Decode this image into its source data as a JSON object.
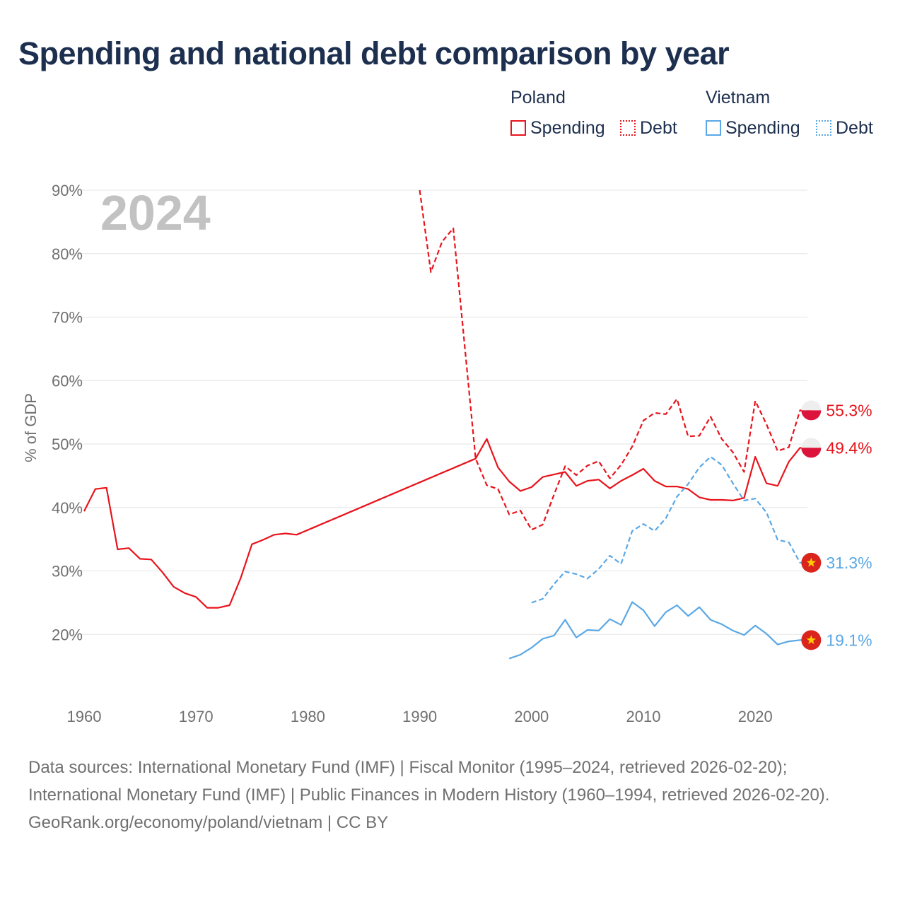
{
  "title": "Spending and national debt comparison by year",
  "legend": {
    "groups": [
      {
        "country": "Poland",
        "color": "#e8141c",
        "items": [
          {
            "label": "Spending",
            "style": "solid"
          },
          {
            "label": "Debt",
            "style": "dotted"
          }
        ]
      },
      {
        "country": "Vietnam",
        "color": "#5aa8e6",
        "items": [
          {
            "label": "Spending",
            "style": "solid"
          },
          {
            "label": "Debt",
            "style": "dotted"
          }
        ]
      }
    ]
  },
  "year_label": "2024",
  "chart_data": {
    "type": "line",
    "title": "Spending and national debt comparison by year",
    "xlabel": "",
    "ylabel": "% of GDP",
    "xlim": [
      1958.8,
      2025.8
    ],
    "ylim": [
      10,
      90
    ],
    "x_ticks": [
      1960,
      1970,
      1980,
      1990,
      2000,
      2010,
      2020
    ],
    "y_ticks": [
      20,
      30,
      40,
      50,
      60,
      70,
      80,
      90
    ],
    "y_tick_labels": [
      "20%",
      "30%",
      "40%",
      "50%",
      "60%",
      "70%",
      "80%",
      "90%"
    ],
    "series": [
      {
        "name": "Poland Spending",
        "country": "Poland",
        "measure": "Spending",
        "color": "#e8141c",
        "dash": "solid",
        "points": [
          [
            1960,
            39.4
          ],
          [
            1961,
            42.9
          ],
          [
            1962,
            43.1
          ],
          [
            1963,
            33.4
          ],
          [
            1964,
            33.6
          ],
          [
            1965,
            31.9
          ],
          [
            1966,
            31.8
          ],
          [
            1967,
            29.8
          ],
          [
            1968,
            27.5
          ],
          [
            1969,
            26.5
          ],
          [
            1970,
            25.9
          ],
          [
            1971,
            24.2
          ],
          [
            1972,
            24.2
          ],
          [
            1973,
            24.6
          ],
          [
            1974,
            28.9
          ],
          [
            1975,
            34.2
          ],
          [
            1976,
            34.9
          ],
          [
            1977,
            35.7
          ],
          [
            1978,
            35.9
          ],
          [
            1979,
            35.7
          ],
          [
            1995,
            47.7
          ],
          [
            1996,
            50.8
          ],
          [
            1997,
            46.3
          ],
          [
            1998,
            44.1
          ],
          [
            1999,
            42.6
          ],
          [
            2000,
            43.2
          ],
          [
            2001,
            44.8
          ],
          [
            2002,
            45.2
          ],
          [
            2003,
            45.6
          ],
          [
            2004,
            43.4
          ],
          [
            2005,
            44.2
          ],
          [
            2006,
            44.4
          ],
          [
            2007,
            43.0
          ],
          [
            2008,
            44.2
          ],
          [
            2009,
            45.1
          ],
          [
            2010,
            46.1
          ],
          [
            2011,
            44.2
          ],
          [
            2012,
            43.3
          ],
          [
            2013,
            43.3
          ],
          [
            2014,
            42.9
          ],
          [
            2015,
            41.6
          ],
          [
            2016,
            41.2
          ],
          [
            2017,
            41.2
          ],
          [
            2018,
            41.1
          ],
          [
            2019,
            41.5
          ],
          [
            2020,
            48.0
          ],
          [
            2021,
            43.8
          ],
          [
            2022,
            43.4
          ],
          [
            2023,
            47.2
          ],
          [
            2024,
            49.4
          ],
          [
            2025,
            49.4
          ]
        ],
        "end_label": "49.4%"
      },
      {
        "name": "Poland Debt",
        "country": "Poland",
        "measure": "Debt",
        "color": "#e8141c",
        "dash": "dashed",
        "points": [
          [
            1979,
            35.7
          ],
          [
            1995,
            47.7
          ]
        ],
        "note": "connector between spending history and debt series"
      },
      {
        "name": "Poland Debt",
        "country": "Poland",
        "measure": "Debt",
        "color": "#e8141c",
        "dash": "dashed",
        "points": [
          [
            1990,
            90.0
          ],
          [
            1991,
            77.1
          ],
          [
            1992,
            81.9
          ],
          [
            1993,
            84.0
          ],
          [
            1995,
            47.7
          ],
          [
            1996,
            43.5
          ],
          [
            1997,
            42.9
          ],
          [
            1998,
            38.9
          ],
          [
            1999,
            39.5
          ],
          [
            2000,
            36.5
          ],
          [
            2001,
            37.3
          ],
          [
            2002,
            42.0
          ],
          [
            2003,
            46.5
          ],
          [
            2004,
            45.1
          ],
          [
            2005,
            46.6
          ],
          [
            2006,
            47.3
          ],
          [
            2007,
            44.6
          ],
          [
            2008,
            46.7
          ],
          [
            2009,
            49.6
          ],
          [
            2010,
            53.7
          ],
          [
            2011,
            54.9
          ],
          [
            2012,
            54.7
          ],
          [
            2013,
            57.1
          ],
          [
            2014,
            51.2
          ],
          [
            2015,
            51.3
          ],
          [
            2016,
            54.3
          ],
          [
            2017,
            50.8
          ],
          [
            2018,
            48.7
          ],
          [
            2019,
            45.6
          ],
          [
            2020,
            56.8
          ],
          [
            2021,
            53.1
          ],
          [
            2022,
            48.9
          ],
          [
            2023,
            49.5
          ],
          [
            2024,
            55.3
          ],
          [
            2025,
            55.3
          ]
        ],
        "end_label": "55.3%"
      },
      {
        "name": "Vietnam Spending",
        "country": "Vietnam",
        "measure": "Spending",
        "color": "#5aa8e6",
        "dash": "solid",
        "points": [
          [
            1998,
            16.2
          ],
          [
            1999,
            16.8
          ],
          [
            2000,
            17.9
          ],
          [
            2001,
            19.3
          ],
          [
            2002,
            19.8
          ],
          [
            2003,
            22.3
          ],
          [
            2004,
            19.5
          ],
          [
            2005,
            20.7
          ],
          [
            2006,
            20.6
          ],
          [
            2007,
            22.4
          ],
          [
            2008,
            21.5
          ],
          [
            2009,
            25.1
          ],
          [
            2010,
            23.8
          ],
          [
            2011,
            21.3
          ],
          [
            2012,
            23.5
          ],
          [
            2013,
            24.6
          ],
          [
            2014,
            22.9
          ],
          [
            2015,
            24.3
          ],
          [
            2016,
            22.3
          ],
          [
            2017,
            21.6
          ],
          [
            2018,
            20.6
          ],
          [
            2019,
            19.9
          ],
          [
            2020,
            21.4
          ],
          [
            2021,
            20.1
          ],
          [
            2022,
            18.4
          ],
          [
            2023,
            18.9
          ],
          [
            2024,
            19.1
          ],
          [
            2025,
            19.1
          ]
        ],
        "end_label": "19.1%"
      },
      {
        "name": "Vietnam Debt",
        "country": "Vietnam",
        "measure": "Debt",
        "color": "#5aa8e6",
        "dash": "dashed",
        "points": [
          [
            2000,
            25.0
          ],
          [
            2001,
            25.6
          ],
          [
            2002,
            27.9
          ],
          [
            2003,
            29.9
          ],
          [
            2004,
            29.5
          ],
          [
            2005,
            28.8
          ],
          [
            2006,
            30.3
          ],
          [
            2007,
            32.4
          ],
          [
            2008,
            31.1
          ],
          [
            2009,
            36.3
          ],
          [
            2010,
            37.4
          ],
          [
            2011,
            36.3
          ],
          [
            2012,
            38.3
          ],
          [
            2013,
            41.7
          ],
          [
            2014,
            43.7
          ],
          [
            2015,
            46.3
          ],
          [
            2016,
            48.0
          ],
          [
            2017,
            46.7
          ],
          [
            2018,
            43.8
          ],
          [
            2019,
            41.1
          ],
          [
            2020,
            41.4
          ],
          [
            2021,
            39.2
          ],
          [
            2022,
            34.9
          ],
          [
            2023,
            34.5
          ],
          [
            2024,
            31.3
          ],
          [
            2025,
            31.3
          ]
        ],
        "end_label": "31.3%"
      }
    ]
  },
  "footer": {
    "sources": "Data sources: International Monetary Fund (IMF) | Fiscal Monitor (1995–2024, retrieved 2026-02-20); International Monetary Fund (IMF) | Public Finances in Modern History (1960–1994, retrieved 2026-02-20).",
    "credit": "GeoRank.org/economy/poland/vietnam | CC BY"
  }
}
